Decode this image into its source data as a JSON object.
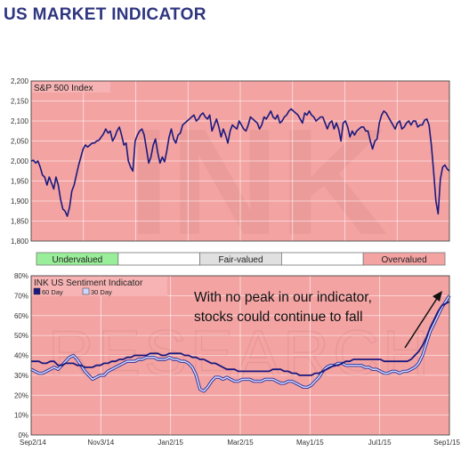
{
  "header": {
    "title": "US MARKET INDICATOR"
  },
  "colors": {
    "plot_bg": "#f4a3a3",
    "series_dark": "#1a1a7e",
    "series_light": "#ccd6ff",
    "undervalued": "#99ee99",
    "fair": "#e0e0e0",
    "overvalued": "#f4a3a3",
    "watermark": "#e69595"
  },
  "legend_bar": {
    "cells": [
      {
        "label": "Undervalued",
        "color": "#99ee99"
      },
      {
        "label": "",
        "color": "#ffffff"
      },
      {
        "label": "Fair-valued",
        "color": "#e0e0e0"
      },
      {
        "label": "",
        "color": "#ffffff"
      },
      {
        "label": "Overvalued",
        "color": "#f4a3a3"
      }
    ]
  },
  "chart_data": [
    {
      "type": "line",
      "title": "S&P 500 Index",
      "ylim": [
        1800,
        2200
      ],
      "yticks": [
        "1,800",
        "1,850",
        "1,900",
        "1,950",
        "2,000",
        "2,050",
        "2,100",
        "2,150",
        "2,200"
      ],
      "grid": true,
      "watermark": "INK",
      "series": [
        {
          "values": [
            2000,
            2002,
            1995,
            2000,
            1985,
            1965,
            1960,
            1940,
            1960,
            1945,
            1930,
            1960,
            1940,
            1905,
            1880,
            1875,
            1862,
            1885,
            1925,
            1940,
            1965,
            1990,
            2010,
            2030,
            2040,
            2035,
            2040,
            2045,
            2045,
            2050,
            2052,
            2060,
            2068,
            2080,
            2070,
            2075,
            2050,
            2060,
            2075,
            2085,
            2065,
            2040,
            2045,
            2000,
            1985,
            1975,
            2050,
            2065,
            2075,
            2080,
            2065,
            2030,
            1995,
            2010,
            2040,
            2055,
            2020,
            1995,
            2010,
            1998,
            2025,
            2060,
            2080,
            2055,
            2045,
            2065,
            2070,
            2090,
            2095,
            2100,
            2105,
            2110,
            2115,
            2100,
            2105,
            2115,
            2120,
            2110,
            2105,
            2115,
            2075,
            2090,
            2105,
            2085,
            2060,
            2080,
            2065,
            2045,
            2075,
            2090,
            2085,
            2080,
            2100,
            2090,
            2080,
            2075,
            2090,
            2110,
            2105,
            2100,
            2095,
            2080,
            2090,
            2110,
            2105,
            2115,
            2125,
            2110,
            2105,
            2115,
            2095,
            2100,
            2110,
            2115,
            2125,
            2130,
            2125,
            2120,
            2115,
            2105,
            2095,
            2120,
            2115,
            2125,
            2115,
            2110,
            2100,
            2105,
            2110,
            2110,
            2095,
            2080,
            2095,
            2100,
            2080,
            2095,
            2080,
            2050,
            2095,
            2100,
            2085,
            2060,
            2075,
            2065,
            2075,
            2080,
            2085,
            2085,
            2075,
            2075,
            2050,
            2030,
            2050,
            2055,
            2095,
            2115,
            2125,
            2120,
            2110,
            2100,
            2090,
            2080,
            2095,
            2100,
            2080,
            2085,
            2095,
            2100,
            2090,
            2100,
            2100,
            2085,
            2090,
            2090,
            2102,
            2105,
            2090,
            2040,
            1975,
            1900,
            1868,
            1955,
            1985,
            1990,
            1980,
            1975
          ]
        }
      ]
    },
    {
      "type": "line",
      "title": "INK US Sentiment Indicator",
      "ylim": [
        0,
        80
      ],
      "yticks": [
        "0%",
        "10%",
        "20%",
        "30%",
        "40%",
        "50%",
        "60%",
        "70%",
        "80%"
      ],
      "xticks": [
        "Sep2/14",
        "Nov3/14",
        "Jan2/15",
        "Mar2/15",
        "May1/15",
        "Jul1/15",
        "Sep1/15"
      ],
      "grid": true,
      "watermark": "RESEARCH",
      "annotation": "With no peak in our indicator, stocks could continue to fall",
      "series": [
        {
          "name": "60 Day",
          "values": [
            37,
            37,
            37,
            36,
            36,
            37,
            37,
            35,
            35,
            36,
            36,
            36,
            35,
            35,
            34,
            34,
            34,
            35,
            35,
            36,
            36,
            37,
            37,
            38,
            38,
            39,
            39,
            40,
            40,
            40,
            40,
            41,
            41,
            41,
            40,
            40,
            41,
            41,
            41,
            41,
            40,
            40,
            39,
            39,
            38,
            38,
            37,
            36,
            36,
            35,
            34,
            33,
            33,
            33,
            32,
            32,
            32,
            32,
            32,
            32,
            32,
            32,
            32,
            33,
            33,
            33,
            32,
            32,
            31,
            31,
            30,
            30,
            30,
            30,
            31,
            31,
            32,
            33,
            34,
            35,
            35,
            36,
            37,
            37,
            38,
            38,
            38,
            38,
            38,
            38,
            38,
            38,
            37,
            37,
            37,
            37,
            37,
            37,
            37,
            38,
            40,
            42,
            45,
            49,
            54,
            58,
            62,
            65,
            66,
            67
          ]
        },
        {
          "name": "30 Day",
          "values": [
            33,
            32,
            31,
            31,
            32,
            33,
            34,
            33,
            35,
            37,
            39,
            40,
            38,
            35,
            32,
            30,
            28,
            29,
            30,
            30,
            32,
            33,
            34,
            35,
            36,
            37,
            37,
            37,
            38,
            38,
            39,
            39,
            39,
            38,
            38,
            38,
            39,
            38,
            38,
            37,
            37,
            36,
            34,
            30,
            23,
            22,
            24,
            27,
            29,
            29,
            28,
            29,
            28,
            27,
            27,
            28,
            28,
            28,
            27,
            27,
            27,
            28,
            28,
            28,
            27,
            26,
            26,
            27,
            27,
            26,
            25,
            24,
            24,
            25,
            27,
            29,
            32,
            34,
            35,
            35,
            36,
            36,
            35,
            35,
            35,
            35,
            35,
            34,
            34,
            33,
            33,
            32,
            31,
            31,
            32,
            32,
            31,
            32,
            32,
            33,
            34,
            36,
            40,
            46,
            52,
            56,
            60,
            64,
            67,
            70
          ]
        }
      ]
    }
  ]
}
